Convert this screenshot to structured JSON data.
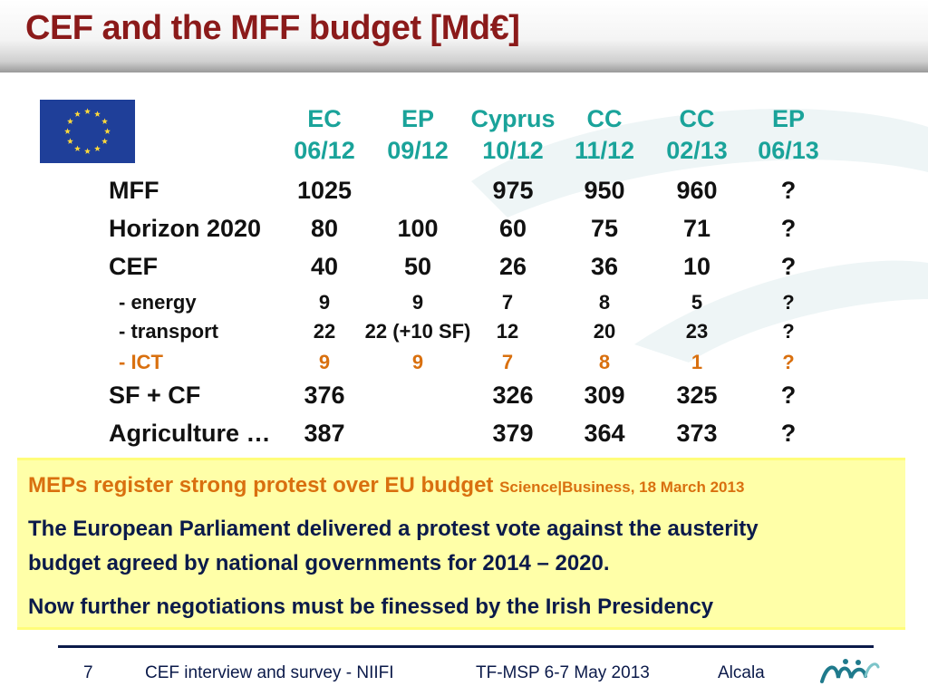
{
  "title": "CEF and the MFF budget [Md€]",
  "columns": [
    {
      "top": "EC",
      "bottom": "06/12"
    },
    {
      "top": "EP",
      "bottom": "09/12"
    },
    {
      "top": "Cyprus",
      "bottom": "10/12"
    },
    {
      "top": "CC",
      "bottom": "11/12"
    },
    {
      "top": "CC",
      "bottom": "02/13"
    },
    {
      "top": "EP",
      "bottom": "06/13"
    }
  ],
  "rows": [
    {
      "label": "MFF",
      "kind": "main",
      "values": [
        "1025",
        "",
        "975",
        "950",
        "960",
        "?"
      ]
    },
    {
      "label": "Horizon 2020",
      "kind": "main",
      "values": [
        "80",
        "100",
        "60",
        "75",
        "71",
        "?"
      ]
    },
    {
      "label": "CEF",
      "kind": "main",
      "values": [
        "40",
        "50",
        "26",
        "36",
        "10",
        "?"
      ]
    },
    {
      "label": "- energy",
      "kind": "sub",
      "values": [
        "9",
        "9",
        "7",
        "8",
        "5",
        "?"
      ]
    },
    {
      "label": "- transport",
      "kind": "sub",
      "values": [
        "22",
        "22 (+10 SF)",
        "12",
        "20",
        "23",
        "?"
      ]
    },
    {
      "label": "- ICT",
      "kind": "ict",
      "values": [
        "9",
        "9",
        "7",
        "8",
        "1",
        "?"
      ]
    },
    {
      "label": "SF + CF",
      "kind": "main",
      "values": [
        "376",
        "",
        "326",
        "309",
        "325",
        "?"
      ]
    },
    {
      "label": "Agriculture …",
      "kind": "main",
      "values": [
        "387",
        "",
        "379",
        "364",
        "373",
        "?"
      ]
    }
  ],
  "news": {
    "headline": "MEPs register strong protest over EU budget",
    "source": "Science|Business, 18 March 2013",
    "para1_line1": "The European Parliament delivered a protest vote against the austerity",
    "para1_line2": "budget agreed by national governments for 2014 – 2020.",
    "para2": "Now further negotiations must be finessed  by the Irish Presidency"
  },
  "footer": {
    "page": "7",
    "left": "CEF interview and survey - NIIFI",
    "middle": "TF-MSP 6-7 May 2013",
    "right": "Alcala"
  },
  "colors": {
    "title": "#8b1a1a",
    "header_text": "#1aa39a",
    "ict": "#d9700f",
    "news_bg": "#ffffa8",
    "flag": "#1f3f99"
  }
}
